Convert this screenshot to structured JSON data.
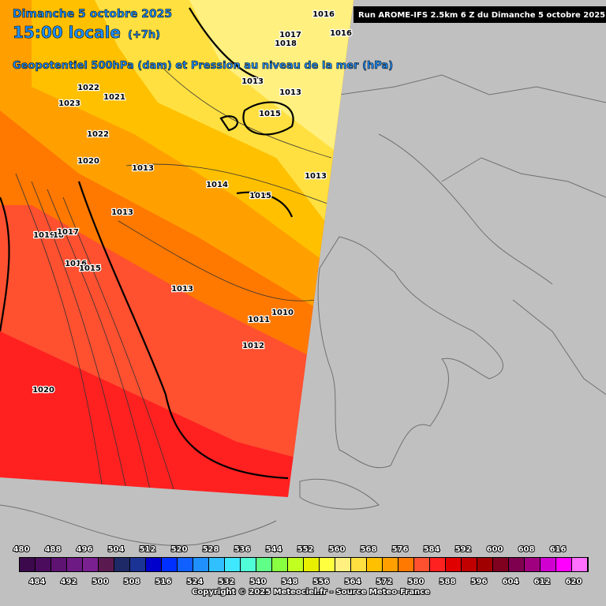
{
  "header": {
    "date": "Dimanche 5 octobre 2025",
    "time": "15:00 locale",
    "lead": "(+7h)",
    "title": "Geopotentiel 500hPa (dam) et Pression au niveau de la mer (hPa)",
    "run": "Run AROME-IFS 2.5km 6 Z du Dimanche 5 octobre 2025"
  },
  "isobar_labels": [
    "1016",
    "1016",
    "1017",
    "1018",
    "1013",
    "1013",
    "1015",
    "1022",
    "1021",
    "1023",
    "1022",
    "1020",
    "1013",
    "1013",
    "1014",
    "1015",
    "1013",
    "1019",
    "18",
    "1017",
    "1016",
    "1015",
    "1013",
    "1010",
    "1011",
    "1012",
    "1020"
  ],
  "legend": {
    "values": [
      "480",
      "484",
      "488",
      "492",
      "496",
      "500",
      "504",
      "508",
      "512",
      "516",
      "520",
      "524",
      "528",
      "532",
      "536",
      "540",
      "544",
      "548",
      "552",
      "556",
      "560",
      "564",
      "568",
      "572",
      "576",
      "580",
      "584",
      "588",
      "592",
      "596",
      "600",
      "604",
      "608",
      "612",
      "616",
      "620"
    ],
    "colors": [
      "#3c0a4c",
      "#4c0c5e",
      "#5e1272",
      "#6e1a84",
      "#7a2090",
      "#5a1a50",
      "#1e2a68",
      "#1c3396",
      "#0000cc",
      "#0030ff",
      "#1060ff",
      "#2090ff",
      "#30c0ff",
      "#40e8ff",
      "#50ffd8",
      "#60ff88",
      "#88ff40",
      "#c0ff20",
      "#e8f000",
      "#ffff40",
      "#fff080",
      "#ffe040",
      "#ffc000",
      "#ffa000",
      "#ff7800",
      "#ff5030",
      "#ff2020",
      "#e00000",
      "#c00000",
      "#a00000",
      "#800020",
      "#800050",
      "#a00080",
      "#d000d0",
      "#ff00ff",
      "#ff70ff"
    ]
  },
  "footer": "Copyright © 2025 Meteociel.fr - Source Meteo-France"
}
